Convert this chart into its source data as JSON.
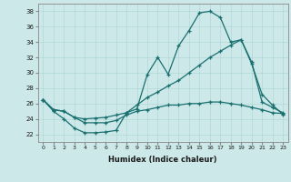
{
  "xlabel": "Humidex (Indice chaleur)",
  "background_color": "#cce8e8",
  "line_color": "#1a7070",
  "xlim": [
    -0.5,
    23.5
  ],
  "ylim": [
    21.0,
    39.0
  ],
  "yticks": [
    22,
    24,
    26,
    28,
    30,
    32,
    34,
    36,
    38
  ],
  "xticks": [
    0,
    1,
    2,
    3,
    4,
    5,
    6,
    7,
    8,
    9,
    10,
    11,
    12,
    13,
    14,
    15,
    16,
    17,
    18,
    19,
    20,
    21,
    22,
    23
  ],
  "curve1_x": [
    0,
    1,
    2,
    3,
    4,
    5,
    6,
    7,
    8,
    9,
    10,
    11,
    12,
    13,
    14,
    15,
    16,
    17,
    18,
    19,
    20,
    21,
    22,
    23
  ],
  "curve1_y": [
    26.5,
    25.0,
    24.0,
    22.8,
    22.2,
    22.2,
    22.3,
    22.5,
    24.8,
    25.3,
    29.8,
    32.0,
    29.8,
    33.5,
    35.5,
    37.8,
    38.0,
    37.2,
    34.0,
    34.3,
    31.2,
    27.2,
    25.8,
    24.6
  ],
  "curve2_x": [
    0,
    1,
    2,
    3,
    4,
    5,
    6,
    7,
    8,
    9,
    10,
    11,
    12,
    13,
    14,
    15,
    16,
    17,
    18,
    19,
    20,
    21,
    22,
    23
  ],
  "curve2_y": [
    26.5,
    25.2,
    25.0,
    24.2,
    24.0,
    24.1,
    24.2,
    24.5,
    24.8,
    25.8,
    26.8,
    27.5,
    28.3,
    29.0,
    30.0,
    31.0,
    32.0,
    32.8,
    33.6,
    34.3,
    31.4,
    26.2,
    25.5,
    24.8
  ],
  "curve3_x": [
    0,
    1,
    2,
    3,
    4,
    5,
    6,
    7,
    8,
    9,
    10,
    11,
    12,
    13,
    14,
    15,
    16,
    17,
    18,
    19,
    20,
    21,
    22,
    23
  ],
  "curve3_y": [
    26.5,
    25.2,
    25.0,
    24.2,
    23.5,
    23.5,
    23.5,
    23.8,
    24.5,
    25.0,
    25.2,
    25.5,
    25.8,
    25.8,
    26.0,
    26.0,
    26.2,
    26.2,
    26.0,
    25.8,
    25.5,
    25.2,
    24.8,
    24.7
  ]
}
